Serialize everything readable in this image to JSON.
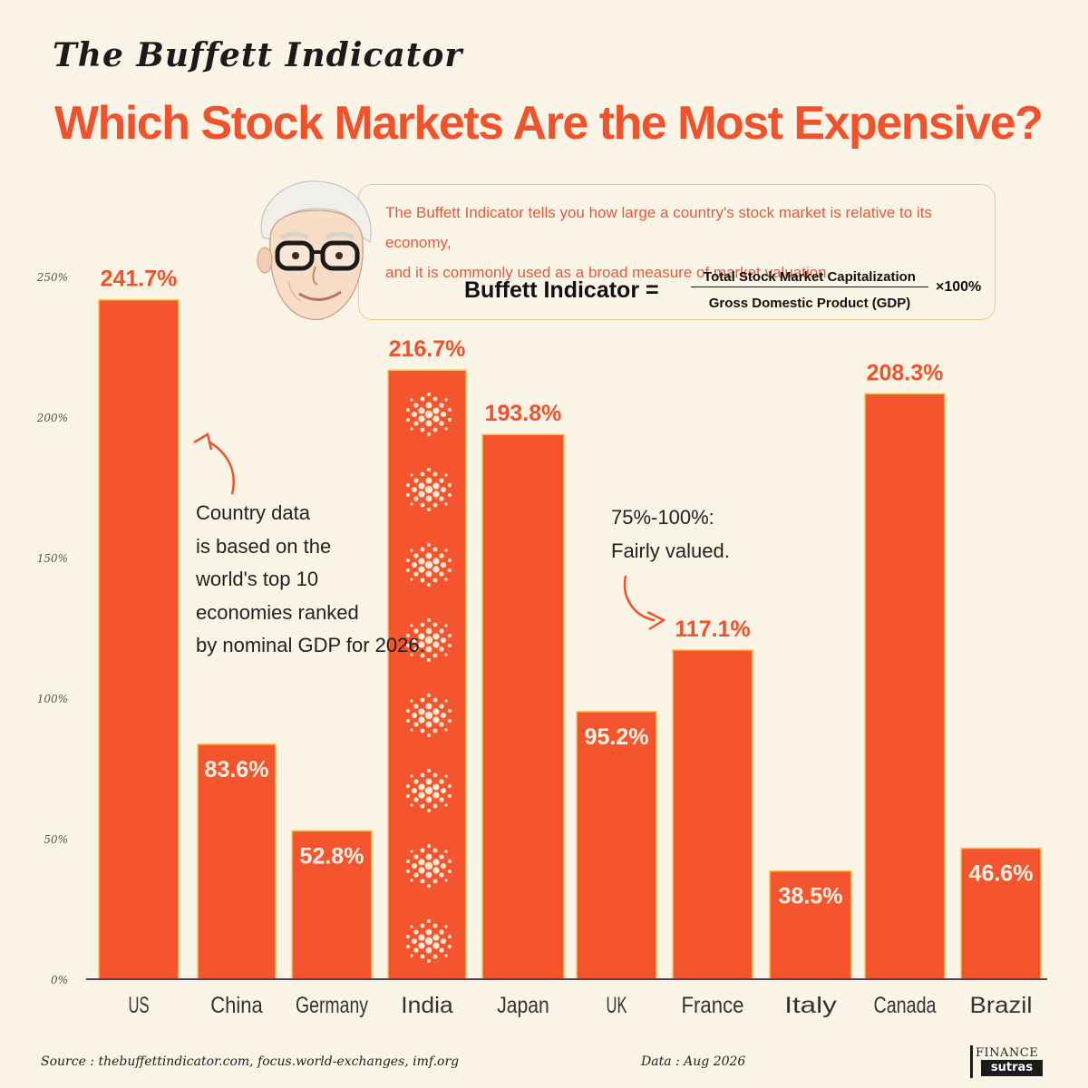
{
  "header": {
    "supertitle": "The Buffett Indicator",
    "title": "Which Stock Markets Are the Most Expensive?"
  },
  "info": {
    "description_line1": "The Buffett Indicator tells you how large a country's  stock market is relative to its economy,",
    "description_line2": "and it is commonly used as a broad measure of market valuation.",
    "formula_label": "Buffett Indicator =",
    "numerator": "Total Stock Market Capitalization",
    "denominator": "Gross Domestic Product (GDP)",
    "multiplier": "×100%"
  },
  "annotations": {
    "country_note": [
      "Country data",
      "is based on the",
      "world's top 10",
      "economies ranked",
      "by nominal GDP for 2026."
    ],
    "fair_value_note": [
      "75%-100%:",
      "Fairly valued."
    ]
  },
  "footer": {
    "source": "Source :  thebuffettindicator.com, focus.world-exchanges, imf.org",
    "date": "Data : Aug 2026",
    "brand_top": "FINANCE",
    "brand_bottom": "sutras"
  },
  "colors": {
    "bar": "#f4542e",
    "title": "#f0522c",
    "background": "#faf4e6",
    "outline": "#f3c452"
  },
  "chart_data": {
    "type": "bar",
    "categories": [
      "US",
      "China",
      "Germany",
      "India",
      "Japan",
      "UK",
      "France",
      "Italy",
      "Canada",
      "Brazil"
    ],
    "values": [
      241.7,
      83.6,
      52.8,
      216.7,
      193.8,
      95.2,
      117.1,
      38.5,
      208.3,
      46.6
    ],
    "data_labels": [
      "241.7%",
      "83.6%",
      "52.8%",
      "216.7%",
      "193.8%",
      "95.2%",
      "117.1%",
      "38.5%",
      "208.3%",
      "46.6%"
    ],
    "label_position": [
      "above",
      "inside",
      "inside",
      "above",
      "above",
      "inside",
      "above",
      "inside",
      "above",
      "inside"
    ],
    "highlight": "India",
    "y_ticks": [
      "0%",
      "50%",
      "100%",
      "150%",
      "200%",
      "250%"
    ],
    "y_tick_values": [
      0,
      50,
      100,
      150,
      200,
      250
    ],
    "ylim": [
      0,
      250
    ],
    "xlabel": "",
    "ylabel": "",
    "grid": false
  }
}
